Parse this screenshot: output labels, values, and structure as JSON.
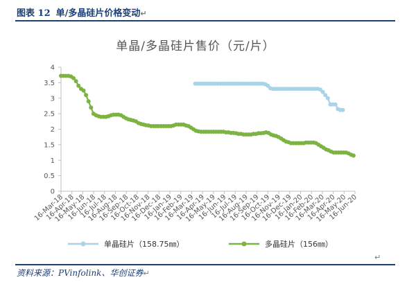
{
  "caption": {
    "figure_no": "图表 12",
    "title": "单/多晶硅片价格变动"
  },
  "source": "资料来源：PVinfolink、华创证券",
  "chart_data": {
    "type": "line",
    "title": "单晶/多晶硅片售价（元/片）",
    "xlabel": "",
    "ylabel": "",
    "ylim": [
      0,
      4
    ],
    "yticks": [
      0,
      0.5,
      1,
      1.5,
      2,
      2.5,
      3,
      3.5,
      4
    ],
    "date_range": [
      "2018-03-16",
      "2020-06-16"
    ],
    "xtick_labels": [
      "16-Mar-18",
      "16-Apr-18",
      "16-May-18",
      "16-Jun-18",
      "16-Jul-18",
      "16-Aug-18",
      "16-Sep-18",
      "16-Oct-18",
      "16-Nov-18",
      "16-Dec-18",
      "16-Jan-19",
      "16-Feb-19",
      "16-Mar-19",
      "16-Apr-19",
      "16-May-19",
      "16-Jun-19",
      "16-Jul-19",
      "16-Aug-19",
      "16-Sep-19",
      "16-Oct-19",
      "16-Nov-19",
      "16-Dec-19",
      "16-Jan-20",
      "16-Feb-20",
      "16-Mar-20",
      "16-Apr-20",
      "16-May-20",
      "16-Jun-20"
    ],
    "legend_position": "bottom",
    "grid": false,
    "series": [
      {
        "name": "单晶硅片（158.75㎜）",
        "color": "#a9d3e6",
        "points": [
          [
            "2019-03-27",
            3.47
          ],
          [
            "2019-04-03",
            3.47
          ],
          [
            "2019-04-10",
            3.47
          ],
          [
            "2019-04-17",
            3.47
          ],
          [
            "2019-04-24",
            3.47
          ],
          [
            "2019-05-01",
            3.47
          ],
          [
            "2019-05-08",
            3.47
          ],
          [
            "2019-05-15",
            3.47
          ],
          [
            "2019-05-22",
            3.47
          ],
          [
            "2019-05-29",
            3.47
          ],
          [
            "2019-06-05",
            3.47
          ],
          [
            "2019-06-12",
            3.47
          ],
          [
            "2019-06-19",
            3.47
          ],
          [
            "2019-06-26",
            3.47
          ],
          [
            "2019-07-03",
            3.47
          ],
          [
            "2019-07-10",
            3.47
          ],
          [
            "2019-07-17",
            3.47
          ],
          [
            "2019-07-24",
            3.47
          ],
          [
            "2019-07-31",
            3.47
          ],
          [
            "2019-08-07",
            3.47
          ],
          [
            "2019-08-14",
            3.47
          ],
          [
            "2019-08-21",
            3.47
          ],
          [
            "2019-08-28",
            3.47
          ],
          [
            "2019-09-04",
            3.47
          ],
          [
            "2019-09-11",
            3.47
          ],
          [
            "2019-09-18",
            3.47
          ],
          [
            "2019-09-25",
            3.47
          ],
          [
            "2019-10-02",
            3.47
          ],
          [
            "2019-10-09",
            3.45
          ],
          [
            "2019-10-16",
            3.4
          ],
          [
            "2019-10-23",
            3.32
          ],
          [
            "2019-10-30",
            3.3
          ],
          [
            "2019-11-06",
            3.3
          ],
          [
            "2019-11-13",
            3.3
          ],
          [
            "2019-11-20",
            3.3
          ],
          [
            "2019-11-27",
            3.3
          ],
          [
            "2019-12-04",
            3.3
          ],
          [
            "2019-12-11",
            3.3
          ],
          [
            "2019-12-18",
            3.3
          ],
          [
            "2019-12-25",
            3.3
          ],
          [
            "2020-01-01",
            3.3
          ],
          [
            "2020-01-08",
            3.3
          ],
          [
            "2020-01-15",
            3.3
          ],
          [
            "2020-01-22",
            3.3
          ],
          [
            "2020-01-29",
            3.3
          ],
          [
            "2020-02-05",
            3.3
          ],
          [
            "2020-02-12",
            3.3
          ],
          [
            "2020-02-19",
            3.3
          ],
          [
            "2020-02-26",
            3.3
          ],
          [
            "2020-03-04",
            3.3
          ],
          [
            "2020-03-11",
            3.28
          ],
          [
            "2020-03-18",
            3.2
          ],
          [
            "2020-03-25",
            3.1
          ],
          [
            "2020-04-01",
            3.0
          ],
          [
            "2020-04-08",
            2.8
          ],
          [
            "2020-04-15",
            2.8
          ],
          [
            "2020-04-22",
            2.8
          ],
          [
            "2020-04-29",
            2.65
          ],
          [
            "2020-05-06",
            2.62
          ],
          [
            "2020-05-13",
            2.62
          ]
        ]
      },
      {
        "name": "多晶硅片（156㎜）",
        "color": "#7cb342",
        "points": [
          [
            "2018-03-16",
            3.72
          ],
          [
            "2018-03-23",
            3.72
          ],
          [
            "2018-03-30",
            3.72
          ],
          [
            "2018-04-06",
            3.72
          ],
          [
            "2018-04-13",
            3.7
          ],
          [
            "2018-04-20",
            3.65
          ],
          [
            "2018-04-27",
            3.55
          ],
          [
            "2018-05-04",
            3.4
          ],
          [
            "2018-05-11",
            3.3
          ],
          [
            "2018-05-18",
            3.25
          ],
          [
            "2018-05-25",
            3.1
          ],
          [
            "2018-06-01",
            2.9
          ],
          [
            "2018-06-08",
            2.7
          ],
          [
            "2018-06-15",
            2.5
          ],
          [
            "2018-06-22",
            2.45
          ],
          [
            "2018-06-29",
            2.42
          ],
          [
            "2018-07-06",
            2.4
          ],
          [
            "2018-07-13",
            2.4
          ],
          [
            "2018-07-20",
            2.4
          ],
          [
            "2018-07-27",
            2.42
          ],
          [
            "2018-08-03",
            2.45
          ],
          [
            "2018-08-10",
            2.47
          ],
          [
            "2018-08-17",
            2.47
          ],
          [
            "2018-08-24",
            2.47
          ],
          [
            "2018-08-31",
            2.45
          ],
          [
            "2018-09-07",
            2.4
          ],
          [
            "2018-09-14",
            2.35
          ],
          [
            "2018-09-21",
            2.32
          ],
          [
            "2018-09-28",
            2.3
          ],
          [
            "2018-10-05",
            2.28
          ],
          [
            "2018-10-12",
            2.25
          ],
          [
            "2018-10-19",
            2.2
          ],
          [
            "2018-10-26",
            2.17
          ],
          [
            "2018-11-02",
            2.15
          ],
          [
            "2018-11-09",
            2.13
          ],
          [
            "2018-11-16",
            2.12
          ],
          [
            "2018-11-23",
            2.1
          ],
          [
            "2018-11-30",
            2.1
          ],
          [
            "2018-12-07",
            2.1
          ],
          [
            "2018-12-14",
            2.1
          ],
          [
            "2018-12-21",
            2.1
          ],
          [
            "2018-12-28",
            2.1
          ],
          [
            "2019-01-04",
            2.1
          ],
          [
            "2019-01-11",
            2.1
          ],
          [
            "2019-01-18",
            2.1
          ],
          [
            "2019-01-25",
            2.12
          ],
          [
            "2019-02-01",
            2.15
          ],
          [
            "2019-02-08",
            2.15
          ],
          [
            "2019-02-15",
            2.15
          ],
          [
            "2019-02-22",
            2.15
          ],
          [
            "2019-03-01",
            2.12
          ],
          [
            "2019-03-08",
            2.1
          ],
          [
            "2019-03-15",
            2.05
          ],
          [
            "2019-03-22",
            2.0
          ],
          [
            "2019-03-29",
            1.95
          ],
          [
            "2019-04-05",
            1.93
          ],
          [
            "2019-04-12",
            1.92
          ],
          [
            "2019-04-19",
            1.92
          ],
          [
            "2019-04-26",
            1.92
          ],
          [
            "2019-05-03",
            1.92
          ],
          [
            "2019-05-10",
            1.92
          ],
          [
            "2019-05-17",
            1.92
          ],
          [
            "2019-05-24",
            1.92
          ],
          [
            "2019-05-31",
            1.92
          ],
          [
            "2019-06-07",
            1.92
          ],
          [
            "2019-06-14",
            1.92
          ],
          [
            "2019-06-21",
            1.9
          ],
          [
            "2019-06-28",
            1.9
          ],
          [
            "2019-07-05",
            1.88
          ],
          [
            "2019-07-12",
            1.88
          ],
          [
            "2019-07-19",
            1.87
          ],
          [
            "2019-07-26",
            1.85
          ],
          [
            "2019-08-02",
            1.85
          ],
          [
            "2019-08-09",
            1.83
          ],
          [
            "2019-08-16",
            1.83
          ],
          [
            "2019-08-23",
            1.83
          ],
          [
            "2019-08-30",
            1.83
          ],
          [
            "2019-09-06",
            1.85
          ],
          [
            "2019-09-13",
            1.85
          ],
          [
            "2019-09-20",
            1.87
          ],
          [
            "2019-09-27",
            1.87
          ],
          [
            "2019-10-04",
            1.88
          ],
          [
            "2019-10-11",
            1.9
          ],
          [
            "2019-10-18",
            1.88
          ],
          [
            "2019-10-25",
            1.83
          ],
          [
            "2019-11-01",
            1.8
          ],
          [
            "2019-11-08",
            1.78
          ],
          [
            "2019-11-15",
            1.75
          ],
          [
            "2019-11-22",
            1.7
          ],
          [
            "2019-11-29",
            1.65
          ],
          [
            "2019-12-06",
            1.6
          ],
          [
            "2019-12-13",
            1.58
          ],
          [
            "2019-12-20",
            1.55
          ],
          [
            "2019-12-27",
            1.55
          ],
          [
            "2020-01-03",
            1.55
          ],
          [
            "2020-01-10",
            1.55
          ],
          [
            "2020-01-17",
            1.55
          ],
          [
            "2020-01-24",
            1.55
          ],
          [
            "2020-01-31",
            1.57
          ],
          [
            "2020-02-07",
            1.57
          ],
          [
            "2020-02-14",
            1.57
          ],
          [
            "2020-02-21",
            1.57
          ],
          [
            "2020-02-28",
            1.55
          ],
          [
            "2020-03-06",
            1.5
          ],
          [
            "2020-03-13",
            1.45
          ],
          [
            "2020-03-20",
            1.4
          ],
          [
            "2020-03-27",
            1.35
          ],
          [
            "2020-04-03",
            1.32
          ],
          [
            "2020-04-10",
            1.28
          ],
          [
            "2020-04-17",
            1.25
          ],
          [
            "2020-04-24",
            1.25
          ],
          [
            "2020-05-01",
            1.25
          ],
          [
            "2020-05-08",
            1.25
          ],
          [
            "2020-05-15",
            1.25
          ],
          [
            "2020-05-22",
            1.25
          ],
          [
            "2020-05-29",
            1.22
          ],
          [
            "2020-06-05",
            1.18
          ],
          [
            "2020-06-12",
            1.15
          ]
        ]
      }
    ]
  }
}
